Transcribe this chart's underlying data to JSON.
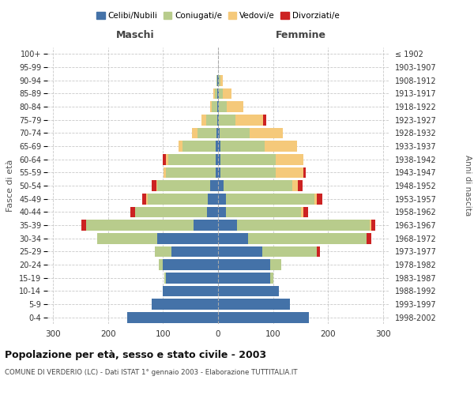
{
  "age_groups": [
    "0-4",
    "5-9",
    "10-14",
    "15-19",
    "20-24",
    "25-29",
    "30-34",
    "35-39",
    "40-44",
    "45-49",
    "50-54",
    "55-59",
    "60-64",
    "65-69",
    "70-74",
    "75-79",
    "80-84",
    "85-89",
    "90-94",
    "95-99",
    "100+"
  ],
  "birth_years": [
    "1998-2002",
    "1993-1997",
    "1988-1992",
    "1983-1987",
    "1978-1982",
    "1973-1977",
    "1968-1972",
    "1963-1967",
    "1958-1962",
    "1953-1957",
    "1948-1952",
    "1943-1947",
    "1938-1942",
    "1933-1937",
    "1928-1932",
    "1923-1927",
    "1918-1922",
    "1913-1917",
    "1908-1912",
    "1903-1907",
    "≤ 1902"
  ],
  "males": {
    "celibi": [
      165,
      120,
      100,
      95,
      100,
      85,
      110,
      45,
      20,
      18,
      15,
      5,
      5,
      4,
      3,
      2,
      1,
      1,
      1,
      0,
      0
    ],
    "coniugati": [
      0,
      0,
      0,
      2,
      8,
      30,
      110,
      195,
      130,
      110,
      95,
      90,
      85,
      60,
      35,
      20,
      10,
      5,
      2,
      0,
      0
    ],
    "vedovi": [
      0,
      0,
      0,
      0,
      0,
      0,
      0,
      0,
      1,
      2,
      2,
      4,
      5,
      8,
      10,
      8,
      4,
      2,
      0,
      0,
      0
    ],
    "divorziati": [
      0,
      0,
      0,
      0,
      0,
      0,
      0,
      8,
      8,
      8,
      8,
      0,
      5,
      0,
      0,
      0,
      0,
      0,
      0,
      0,
      0
    ]
  },
  "females": {
    "nubili": [
      165,
      130,
      110,
      95,
      95,
      80,
      55,
      35,
      15,
      15,
      10,
      5,
      5,
      4,
      3,
      2,
      1,
      1,
      1,
      0,
      0
    ],
    "coniugate": [
      0,
      0,
      0,
      5,
      20,
      100,
      215,
      240,
      135,
      160,
      125,
      100,
      100,
      80,
      55,
      30,
      15,
      8,
      3,
      0,
      0
    ],
    "vedove": [
      0,
      0,
      0,
      0,
      0,
      0,
      0,
      3,
      5,
      5,
      10,
      50,
      50,
      60,
      60,
      50,
      30,
      15,
      5,
      0,
      0
    ],
    "divorziate": [
      0,
      0,
      0,
      0,
      0,
      5,
      8,
      8,
      8,
      10,
      8,
      5,
      0,
      0,
      0,
      5,
      0,
      0,
      0,
      0,
      0
    ]
  },
  "colors": {
    "celibi_nubili": "#4472a8",
    "coniugati": "#b8cc8c",
    "vedovi": "#f5c97a",
    "divorziati": "#cc2222"
  },
  "xlim": 310,
  "title": "Popolazione per età, sesso e stato civile - 2003",
  "subtitle": "COMUNE DI VERDERIO (LC) - Dati ISTAT 1° gennaio 2003 - Elaborazione TUTTITALIA.IT",
  "ylabel_left": "Fasce di età",
  "ylabel_right": "Anni di nascita",
  "xlabel_male": "Maschi",
  "xlabel_female": "Femmine"
}
